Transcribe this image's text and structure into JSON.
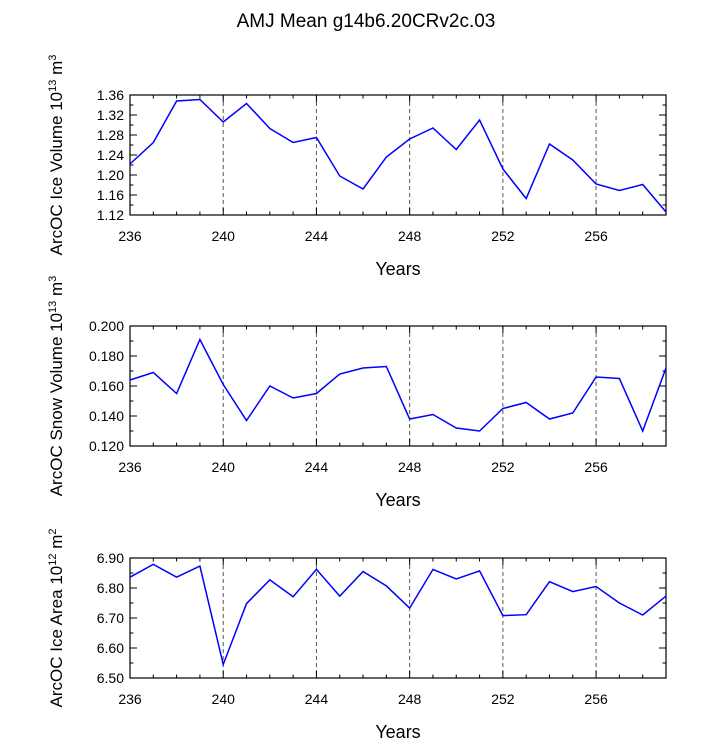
{
  "figure": {
    "title": "AMJ Mean g14b6.20CRv2c.03",
    "line_color": "#0000ff"
  },
  "chart_data": [
    {
      "type": "line",
      "xlabel": "Years",
      "ylabel": {
        "prefix": "ArcOC Ice Volume 10",
        "exp": "13",
        "suffix": " m",
        "unit_exp": "3"
      },
      "xlim": [
        236,
        259
      ],
      "ylim": [
        1.12,
        1.36
      ],
      "x_major_ticks": [
        236,
        240,
        244,
        248,
        252,
        256
      ],
      "y_major_ticks": [
        1.12,
        1.16,
        1.2,
        1.24,
        1.28,
        1.32,
        1.36
      ],
      "y_tick_labels": [
        "1.12",
        "1.16",
        "1.20",
        "1.24",
        "1.28",
        "1.32",
        "1.36"
      ],
      "y_minor_step": 0.02,
      "grid": "dashed vertical at major x ticks",
      "x": [
        236,
        237,
        238,
        239,
        240,
        241,
        242,
        243,
        244,
        245,
        246,
        247,
        248,
        249,
        250,
        251,
        252,
        253,
        254,
        255,
        256,
        257,
        258,
        259
      ],
      "y": [
        1.222,
        1.265,
        1.348,
        1.351,
        1.306,
        1.343,
        1.293,
        1.265,
        1.275,
        1.198,
        1.172,
        1.236,
        1.272,
        1.294,
        1.251,
        1.31,
        1.212,
        1.153,
        1.262,
        1.23,
        1.182,
        1.169,
        1.181,
        1.126
      ]
    },
    {
      "type": "line",
      "xlabel": "Years",
      "ylabel": {
        "prefix": "ArcOC Snow Volume 10",
        "exp": "13",
        "suffix": " m",
        "unit_exp": "3"
      },
      "xlim": [
        236,
        259
      ],
      "ylim": [
        0.12,
        0.2
      ],
      "x_major_ticks": [
        236,
        240,
        244,
        248,
        252,
        256
      ],
      "y_major_ticks": [
        0.12,
        0.14,
        0.16,
        0.18,
        0.2
      ],
      "y_tick_labels": [
        "0.120",
        "0.140",
        "0.160",
        "0.180",
        "0.200"
      ],
      "y_minor_step": 0.01,
      "grid": "dashed vertical at major x ticks",
      "x": [
        236,
        237,
        238,
        239,
        240,
        241,
        242,
        243,
        244,
        245,
        246,
        247,
        248,
        249,
        250,
        251,
        252,
        253,
        254,
        255,
        256,
        257,
        258,
        259
      ],
      "y": [
        0.164,
        0.169,
        0.155,
        0.191,
        0.161,
        0.137,
        0.16,
        0.152,
        0.155,
        0.168,
        0.172,
        0.173,
        0.138,
        0.141,
        0.132,
        0.13,
        0.145,
        0.149,
        0.138,
        0.142,
        0.166,
        0.165,
        0.13,
        0.172
      ]
    },
    {
      "type": "line",
      "xlabel": "Years",
      "ylabel": {
        "prefix": "ArcOC Ice Area 10",
        "exp": "12",
        "suffix": " m",
        "unit_exp": "2"
      },
      "xlim": [
        236,
        259
      ],
      "ylim": [
        6.5,
        6.9
      ],
      "x_major_ticks": [
        236,
        240,
        244,
        248,
        252,
        256
      ],
      "y_major_ticks": [
        6.5,
        6.6,
        6.7,
        6.8,
        6.9
      ],
      "y_tick_labels": [
        "6.50",
        "6.60",
        "6.70",
        "6.80",
        "6.90"
      ],
      "y_minor_step": 0.05,
      "grid": "dashed vertical at major x ticks",
      "x": [
        236,
        237,
        238,
        239,
        240,
        241,
        242,
        243,
        244,
        245,
        246,
        247,
        248,
        249,
        250,
        251,
        252,
        253,
        254,
        255,
        256,
        257,
        258,
        259
      ],
      "y": [
        6.836,
        6.879,
        6.836,
        6.873,
        6.545,
        6.748,
        6.827,
        6.771,
        6.862,
        6.773,
        6.855,
        6.807,
        6.733,
        6.862,
        6.83,
        6.857,
        6.708,
        6.711,
        6.821,
        6.788,
        6.805,
        6.75,
        6.71,
        6.773
      ]
    }
  ]
}
